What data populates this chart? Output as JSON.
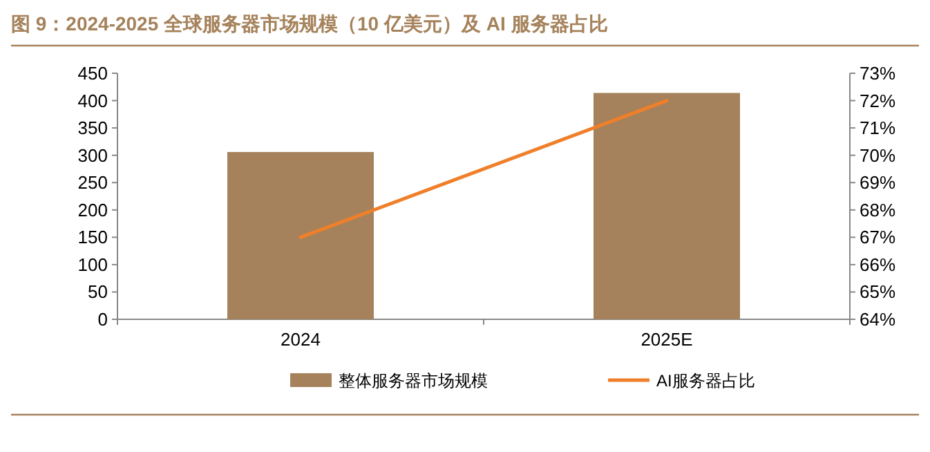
{
  "chart_data": {
    "type": "bar",
    "title": "图 9：2024-2025 全球服务器市场规模（10 亿美元）及 AI 服务器占比",
    "categories": [
      "2024",
      "2025E"
    ],
    "series": [
      {
        "name": "整体服务器市场规模",
        "color": "#a5825b",
        "values": [
          306,
          414
        ]
      },
      {
        "name": "AI服务器占比",
        "type": "line",
        "axis": "y2",
        "color": "#f07f2a",
        "values": [
          67,
          72
        ]
      }
    ],
    "ylim": [
      0,
      450
    ],
    "yticks": [
      0,
      50,
      100,
      150,
      200,
      250,
      300,
      350,
      400,
      450
    ],
    "y2lim": [
      64,
      73
    ],
    "y2ticks": [
      {
        "value": 64,
        "label": "64%"
      },
      {
        "value": 65,
        "label": "65%"
      },
      {
        "value": 66,
        "label": "66%"
      },
      {
        "value": 67,
        "label": "67%"
      },
      {
        "value": 68,
        "label": "68%"
      },
      {
        "value": 69,
        "label": "69%"
      },
      {
        "value": 70,
        "label": "70%"
      },
      {
        "value": 71,
        "label": "71%"
      },
      {
        "value": 72,
        "label": "72%"
      },
      {
        "value": 73,
        "label": "73%"
      }
    ],
    "grid": false,
    "legend": "bottom",
    "marker": "none"
  }
}
